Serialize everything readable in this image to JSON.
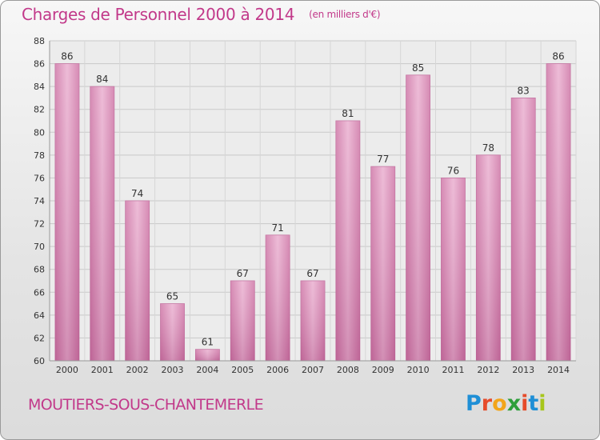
{
  "chart_data": {
    "type": "bar",
    "title": "Charges de Personnel 2000 à 2014",
    "subtitle": "(en milliers d'€)",
    "categories": [
      "2000",
      "2001",
      "2002",
      "2003",
      "2004",
      "2005",
      "2006",
      "2007",
      "2008",
      "2009",
      "2010",
      "2011",
      "2012",
      "2013",
      "2014"
    ],
    "values": [
      86,
      84,
      74,
      65,
      61,
      67,
      71,
      67,
      81,
      77,
      85,
      76,
      78,
      83,
      86
    ],
    "ylim": [
      60,
      88
    ],
    "yticks": [
      60,
      62,
      64,
      66,
      68,
      70,
      72,
      74,
      76,
      78,
      80,
      82,
      84,
      86,
      88
    ],
    "grid": true,
    "bar_color": "#d98bb6"
  },
  "footer": {
    "commune": "MOUTIERS-SOUS-CHANTEMERLE",
    "brand_letters": [
      {
        "ch": "P",
        "color": "#1f8fd6"
      },
      {
        "ch": "r",
        "color": "#e64b2a"
      },
      {
        "ch": "o",
        "color": "#f2a51a"
      },
      {
        "ch": "x",
        "color": "#2e9f3a"
      },
      {
        "ch": "i",
        "color": "#e64b2a"
      },
      {
        "ch": "t",
        "color": "#1f8fd6"
      },
      {
        "ch": "i",
        "color": "#a7c61b"
      }
    ]
  }
}
